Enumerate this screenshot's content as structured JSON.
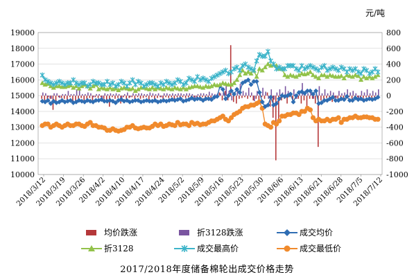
{
  "unit_label": "元/吨",
  "caption": "2017/2018年度储备棉轮出成交价格走势",
  "colors": {
    "avg_change": "#b5383a",
    "idx_change": "#7a55a0",
    "avg_price": "#2e6db3",
    "idx_price": "#92c24a",
    "high_price": "#3db4c9",
    "low_price": "#f08a2c"
  },
  "chart_data": {
    "type": "line",
    "title": "",
    "left_axis": {
      "min": 10000,
      "max": 19000,
      "step": 1000,
      "ticks": [
        "10000",
        "11000",
        "12000",
        "13000",
        "14000",
        "15000",
        "16000",
        "17000",
        "18000",
        "19000"
      ]
    },
    "right_axis": {
      "min": -1000,
      "max": 800,
      "step": 200,
      "ticks": [
        "-1000",
        "-800",
        "-600",
        "-400",
        "-200",
        "0",
        "200",
        "400",
        "600",
        "800"
      ]
    },
    "x_tick_labels": [
      "2018/3/12",
      "2018/3/19",
      "2018/3/26",
      "2018/4/2",
      "2018/4/10",
      "2018/4/17",
      "2018/4/24",
      "2018/5/2",
      "2018/5/9",
      "2018/5/16",
      "2018/5/23",
      "2018/5/30",
      "2018/6/6",
      "2018/6/13",
      "2018/6/21",
      "2018/6/28",
      "2018/7/5",
      "2018/7/12"
    ],
    "grid": "horizontal",
    "legend": [
      {
        "name": "均价跌涨",
        "marker": "bar",
        "series": "avg_change"
      },
      {
        "name": "折3128跌涨",
        "marker": "bar",
        "series": "idx_change"
      },
      {
        "name": "成交均价",
        "marker": "diamond",
        "series": "avg_price"
      },
      {
        "name": "折3128",
        "marker": "triangle",
        "series": "idx_price"
      },
      {
        "name": "成交最高价",
        "marker": "star",
        "series": "high_price"
      },
      {
        "name": "成交最低价",
        "marker": "circle",
        "series": "low_price"
      }
    ],
    "series": {
      "avg_price": [
        14650,
        14600,
        14700,
        14500,
        14650,
        14550,
        14600,
        14700,
        14600,
        14650,
        14700,
        14550,
        14600,
        14700,
        14650,
        14600,
        14700,
        14650,
        14600,
        14700,
        14700,
        14750,
        14650,
        14650,
        14700,
        14650,
        14550,
        14700,
        14750,
        14650,
        14700,
        14600,
        14650,
        14700,
        14700,
        14600,
        14650,
        14700,
        14650,
        14650,
        14700,
        14600,
        14650,
        14700,
        14650,
        14700,
        14750,
        14700,
        14750,
        14800,
        14650,
        14700,
        14750,
        14850,
        14750,
        14800,
        14800,
        14700,
        14800,
        14800,
        14750,
        14900,
        14950,
        15600,
        15400,
        14800,
        15000,
        15300,
        15100,
        15400,
        15200,
        15800,
        15900,
        16000,
        15700,
        15900,
        15900,
        15200,
        14600,
        14300,
        14400,
        14900,
        14400,
        14500,
        14800,
        15000,
        14950,
        15000,
        15100,
        14600,
        15000,
        15200,
        15250,
        15150,
        15300,
        15300,
        15100,
        15300,
        14500,
        14550,
        14700,
        14700,
        14800,
        14900,
        14700,
        14700,
        14800,
        14750,
        14950,
        14700,
        14700,
        14850,
        14750,
        14800,
        14700,
        14750,
        14800,
        14750,
        14800,
        14900
      ],
      "idx_price": [
        15800,
        15700,
        15750,
        15600,
        15500,
        15600,
        15600,
        15550,
        15550,
        15600,
        15650,
        15500,
        15600,
        15450,
        15600,
        15700,
        15600,
        15450,
        15600,
        15700,
        15400,
        15500,
        15450,
        15400,
        15500,
        15400,
        15450,
        15350,
        15450,
        15500,
        15450,
        15400,
        15450,
        15300,
        15400,
        15500,
        15500,
        15450,
        15400,
        15500,
        15400,
        15500,
        15450,
        15400,
        15500,
        15450,
        15400,
        15500,
        15450,
        15400,
        15500,
        15400,
        15500,
        15550,
        15600,
        15600,
        15550,
        15500,
        15600,
        15550,
        15600,
        15700,
        15650,
        15700,
        15800,
        15750,
        15700,
        15700,
        15800,
        16000,
        16300,
        16600,
        16400,
        16500,
        16400,
        16600,
        16200,
        16700,
        16600,
        16800,
        17000,
        16900,
        16950,
        16900,
        16700,
        16700,
        16300,
        16200,
        16300,
        16250,
        16200,
        16300,
        16400,
        16350,
        16400,
        16500,
        16300,
        16200,
        16100,
        16300,
        16300,
        16200,
        16300,
        16250,
        16200,
        16200,
        16250,
        16100,
        16300,
        16250,
        16200,
        16300,
        16250,
        16000,
        16200,
        16100,
        16200,
        16100,
        16200,
        16300
      ],
      "high_price": [
        16300,
        16000,
        15900,
        15800,
        15700,
        15800,
        15900,
        15800,
        15700,
        15800,
        15800,
        16000,
        15800,
        15700,
        15800,
        15800,
        15600,
        15700,
        15900,
        15800,
        15800,
        15700,
        15700,
        15900,
        15700,
        15800,
        15600,
        15700,
        15900,
        15800,
        15600,
        15800,
        16000,
        15700,
        15900,
        15800,
        15600,
        15700,
        15800,
        15800,
        15700,
        15600,
        15800,
        15700,
        15900,
        15800,
        15700,
        15800,
        16000,
        15900,
        15700,
        15800,
        16100,
        16000,
        15900,
        16200,
        16000,
        16100,
        16000,
        15900,
        16100,
        16200,
        16300,
        16400,
        16500,
        16600,
        16400,
        16500,
        16700,
        16800,
        16600,
        16900,
        17000,
        16800,
        16700,
        16600,
        17200,
        17600,
        17500,
        17500,
        17800,
        17200,
        17000,
        16700,
        16800,
        16700,
        16700,
        16900,
        16900,
        16900,
        16700,
        16600,
        16900,
        16700,
        16800,
        16900,
        16800,
        16700,
        16600,
        16800,
        16900,
        16600,
        16700,
        16800,
        16700,
        16600,
        16800,
        16700,
        16500,
        16700,
        16600,
        16700,
        16500,
        16400,
        16700,
        16600,
        16400,
        16500,
        16700,
        16500
      ],
      "low_price": [
        13100,
        13200,
        13200,
        13000,
        13100,
        13200,
        13100,
        13000,
        13100,
        13200,
        13100,
        13100,
        13200,
        13200,
        13100,
        13050,
        13200,
        13300,
        13100,
        13100,
        13000,
        13000,
        12950,
        12800,
        12800,
        12900,
        12800,
        12750,
        12800,
        12850,
        13000,
        13000,
        13100,
        12950,
        12900,
        12950,
        13000,
        12950,
        12950,
        13050,
        13200,
        13100,
        13200,
        13050,
        13100,
        13200,
        13150,
        13100,
        13300,
        13150,
        13200,
        13200,
        13100,
        13300,
        13200,
        13250,
        13150,
        13200,
        13200,
        13300,
        13400,
        13400,
        13500,
        13600,
        13700,
        13500,
        13400,
        13600,
        13800,
        13900,
        14000,
        14200,
        14300,
        14300,
        14400,
        14400,
        14500,
        14600,
        14200,
        13200,
        13100,
        13000,
        13300,
        13200,
        13400,
        13700,
        13700,
        13800,
        13800,
        13900,
        13900,
        13800,
        14000,
        14000,
        14200,
        14100,
        13600,
        13400,
        13500,
        13400,
        13400,
        13500,
        13400,
        13500,
        13500,
        13600,
        13300,
        13500,
        13500,
        13600,
        13600,
        13700,
        13600,
        13600,
        13650,
        13650,
        13600,
        13600,
        13500,
        13500
      ],
      "avg_change": [
        -40,
        -60,
        -80,
        -40,
        -180,
        -100,
        -20,
        -30,
        -40,
        -60,
        -20,
        -80,
        -100,
        -40,
        -30,
        -60,
        -40,
        -30,
        -100,
        -20,
        -30,
        -20,
        -40,
        -60,
        -140,
        -20,
        -40,
        -30,
        -100,
        -20,
        -40,
        -30,
        -20,
        -60,
        -20,
        -40,
        -30,
        -20,
        -50,
        -20,
        -40,
        -30,
        -20,
        -40,
        -20,
        -30,
        -20,
        -40,
        -20,
        -60,
        -20,
        -30,
        -20,
        -40,
        -20,
        -30,
        -40,
        -20,
        -30,
        -60,
        -40,
        -30,
        -20,
        40,
        -60,
        60,
        -60,
        640,
        -80,
        -100,
        -40,
        -30,
        -20,
        -40,
        -20,
        -60,
        -40,
        -100,
        -20,
        -40,
        40,
        -140,
        -280,
        -820,
        -300,
        -60,
        -40,
        -100,
        -20,
        -60,
        -40,
        -40,
        -100,
        -60,
        -160,
        -40,
        -40,
        -100,
        -650,
        -60,
        -40,
        -30,
        -40,
        -80,
        -30,
        -40,
        -60,
        -30,
        -40,
        -20,
        -80,
        -30,
        -20,
        -40,
        -30,
        -20,
        -60,
        -40,
        -30,
        -40
      ],
      "idx_change": [
        40,
        30,
        -20,
        -40,
        30,
        30,
        -30,
        20,
        20,
        60,
        20,
        20,
        80,
        80,
        20,
        20,
        40,
        30,
        -20,
        20,
        20,
        -30,
        30,
        20,
        30,
        20,
        30,
        20,
        -40,
        20,
        40,
        -20,
        30,
        20,
        30,
        30,
        20,
        20,
        40,
        30,
        20,
        30,
        -20,
        30,
        30,
        20,
        30,
        20,
        30,
        30,
        20,
        30,
        30,
        20,
        -30,
        20,
        30,
        30,
        20,
        50,
        30,
        20,
        30,
        30,
        40,
        150,
        60,
        -60,
        40,
        60,
        150,
        60,
        40,
        100,
        40,
        -70,
        60,
        40,
        100,
        50,
        -40,
        80,
        -50,
        40,
        80,
        40,
        120,
        60,
        30,
        80,
        -40,
        40,
        160,
        60,
        30,
        40,
        -40,
        50,
        120,
        30,
        80,
        30,
        60,
        40,
        -30,
        60,
        30,
        40,
        80,
        40,
        60,
        30,
        -30,
        60,
        40,
        80,
        30,
        60,
        40,
        80
      ]
    }
  }
}
